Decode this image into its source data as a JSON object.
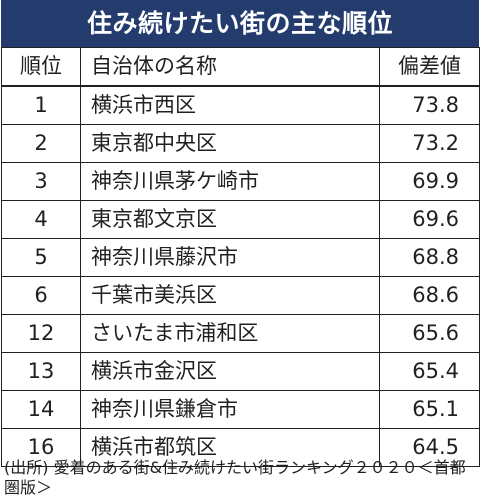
{
  "title": "住み続けたい街の主な順位",
  "table": {
    "headers": {
      "rank": "順位",
      "name": "自治体の名称",
      "score": "偏差値"
    },
    "rows": [
      {
        "rank": "1",
        "name": "横浜市西区",
        "score": "73.8"
      },
      {
        "rank": "2",
        "name": "東京都中央区",
        "score": "73.2"
      },
      {
        "rank": "3",
        "name": "神奈川県茅ケ崎市",
        "score": "69.9"
      },
      {
        "rank": "4",
        "name": "東京都文京区",
        "score": "69.6"
      },
      {
        "rank": "5",
        "name": "神奈川県藤沢市",
        "score": "68.8"
      },
      {
        "rank": "6",
        "name": "千葉市美浜区",
        "score": "68.6"
      },
      {
        "rank": "12",
        "name": "さいたま市浦和区",
        "score": "65.6"
      },
      {
        "rank": "13",
        "name": "横浜市金沢区",
        "score": "65.4"
      },
      {
        "rank": "14",
        "name": "神奈川県鎌倉市",
        "score": "65.1"
      },
      {
        "rank": "16",
        "name": "横浜市都筑区",
        "score": "64.5"
      }
    ]
  },
  "source": "(出所) 愛着のある街&住み続けたい街ランキング２０２０＜首都圏版＞",
  "colors": {
    "title_background": "#233c6d",
    "title_text": "#ffffff",
    "text": "#231f20",
    "border": "#231f20"
  }
}
